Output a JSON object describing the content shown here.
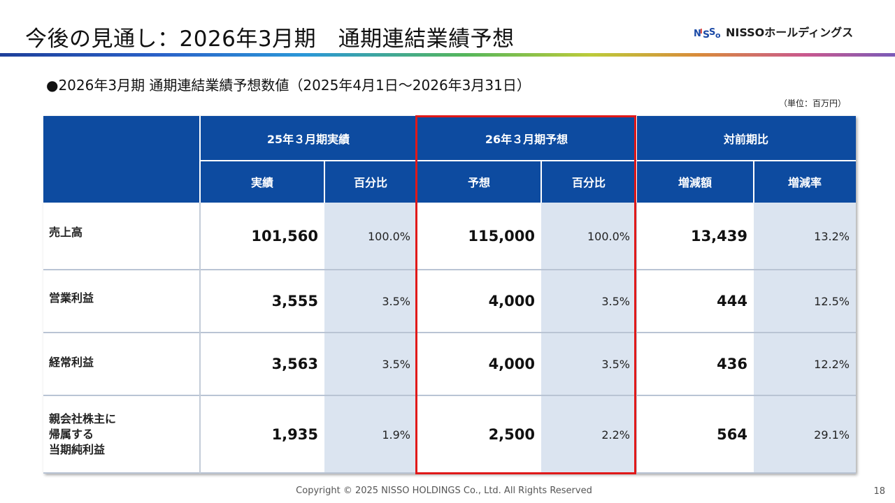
{
  "header": {
    "title": "今後の見通し：2026年3月期　通期連結業績予想",
    "logo_text": "NISSOホールディングス"
  },
  "subtitle": "●2026年3月期 通期連結業績予想数値（2025年4月1日～2026年3月31日）",
  "unit_note": "（単位：百万円）",
  "table": {
    "groups": [
      "25年３月期実績",
      "26年３月期予想",
      "対前期比"
    ],
    "subheaders": [
      "実績",
      "百分比",
      "予想",
      "百分比",
      "増減額",
      "増減率"
    ],
    "rows": [
      {
        "label": "売上高",
        "values": [
          "101,560",
          "100.0%",
          "115,000",
          "100.0%",
          "13,439",
          "13.2%"
        ]
      },
      {
        "label": "営業利益",
        "values": [
          "3,555",
          "3.5%",
          "4,000",
          "3.5%",
          "444",
          "12.5%"
        ]
      },
      {
        "label": "経常利益",
        "values": [
          "3,563",
          "3.5%",
          "4,000",
          "3.5%",
          "436",
          "12.2%"
        ]
      },
      {
        "label": "親会社株主に\n帰属する\n当期純利益",
        "values": [
          "1,935",
          "1.9%",
          "2,500",
          "2.2%",
          "564",
          "29.1%"
        ]
      }
    ]
  },
  "footer": {
    "copyright": "Copyright © 2025 NISSO HOLDINGS Co., Ltd. All Rights Reserved",
    "page_number": "18"
  },
  "colors": {
    "header_blue": "#0d4ba0",
    "shade_blue": "#dbe4f0",
    "highlight_red": "#e01919"
  }
}
